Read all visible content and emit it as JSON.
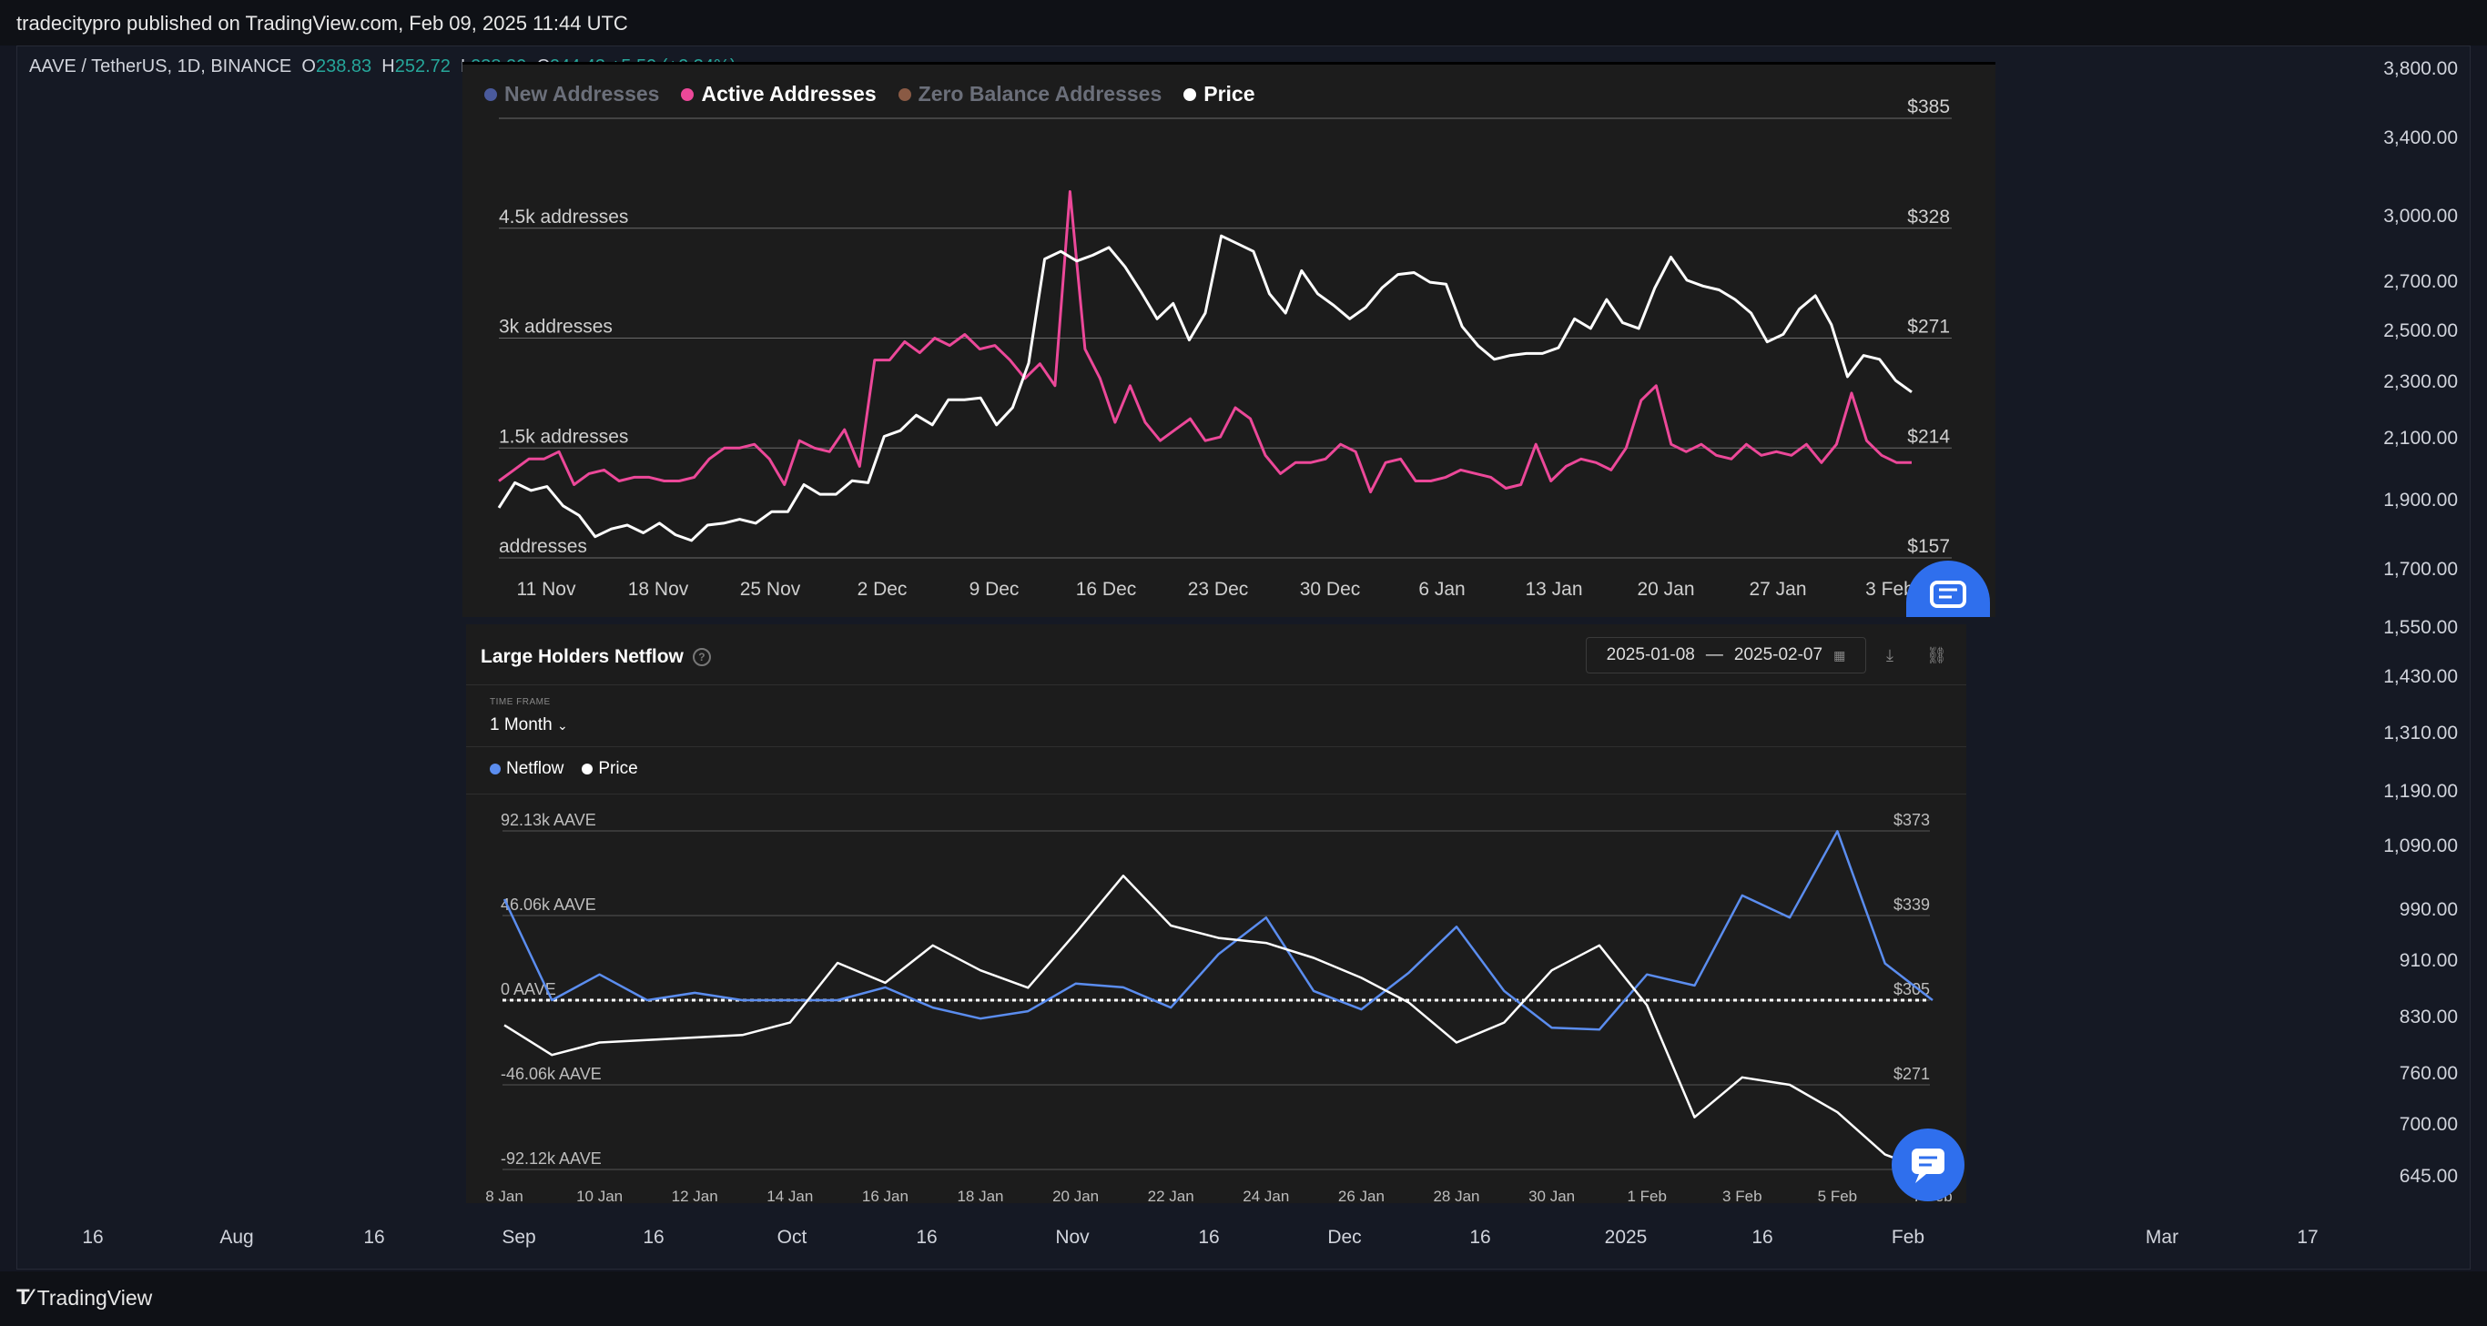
{
  "header": {
    "published": "tradecitypro published on TradingView.com, Feb 09, 2025 11:44 UTC"
  },
  "ohlc": {
    "symbol": "AAVE / TetherUS, 1D, BINANCE",
    "o_label": "O",
    "o": "238.83",
    "h_label": "H",
    "h": "252.72",
    "l_label": "L",
    "l": "238.20",
    "c_label": "C",
    "c": "244.43",
    "change": "+5.59 (+2.34%)"
  },
  "price_axis": [
    "3,800.00",
    "3,400.00",
    "3,000.00",
    "2,700.00",
    "2,500.00",
    "2,300.00",
    "2,100.00",
    "1,900.00",
    "1,700.00",
    "1,550.00",
    "1,430.00",
    "1,310.00",
    "1,190.00",
    "1,090.00",
    "990.00",
    "910.00",
    "830.00",
    "760.00",
    "700.00",
    "645.00"
  ],
  "time_axis": [
    "16",
    "Aug",
    "16",
    "Sep",
    "16",
    "Oct",
    "16",
    "Nov",
    "16",
    "Dec",
    "16",
    "2025",
    "16",
    "Feb",
    "Mar",
    "17"
  ],
  "footer": {
    "brand": "TradingView"
  },
  "colors": {
    "new_addresses": "#4a5a9c",
    "active_addresses": "#ec4899",
    "zero_balance": "#8a5a44",
    "price": "#ffffff",
    "netflow": "#5b8def",
    "panel_bg": "#1c1c1c",
    "chat": "#2f6fed"
  },
  "panel1": {
    "legend": [
      "New Addresses",
      "Active Addresses",
      "Zero Balance Addresses",
      "Price"
    ],
    "chart_data": {
      "type": "line",
      "x_ticks": [
        "11 Nov",
        "18 Nov",
        "25 Nov",
        "2 Dec",
        "9 Dec",
        "16 Dec",
        "23 Dec",
        "30 Dec",
        "6 Jan",
        "13 Jan",
        "20 Jan",
        "27 Jan",
        "3 Feb"
      ],
      "left_axis_labels": [
        "4.5k addresses",
        "3k addresses",
        "1.5k addresses",
        "addresses"
      ],
      "right_axis_labels": [
        "$385",
        "$328",
        "$271",
        "$214",
        "$157"
      ],
      "right_axis_values": [
        385,
        328,
        271,
        214,
        157
      ],
      "series": [
        {
          "name": "Active Addresses",
          "axis": "left",
          "values": [
            1050,
            1200,
            1350,
            1350,
            1450,
            1000,
            1150,
            1200,
            1050,
            1100,
            1100,
            1050,
            1050,
            1100,
            1350,
            1500,
            1500,
            1550,
            1350,
            1000,
            1600,
            1500,
            1450,
            1750,
            1250,
            2700,
            2700,
            2950,
            2800,
            3000,
            2900,
            3050,
            2850,
            2900,
            2700,
            2450,
            2650,
            2350,
            5000,
            2850,
            2450,
            1850,
            2350,
            1850,
            1600,
            1750,
            1900,
            1600,
            1650,
            2050,
            1900,
            1400,
            1150,
            1300,
            1300,
            1350,
            1550,
            1450,
            900,
            1300,
            1350,
            1050,
            1050,
            1100,
            1200,
            1150,
            1100,
            950,
            1000,
            1550,
            1050,
            1250,
            1350,
            1300,
            1200,
            1500,
            2150,
            2350,
            1550,
            1450,
            1550,
            1400,
            1350,
            1550,
            1400,
            1450,
            1400,
            1550,
            1300,
            1550,
            2250,
            1600,
            1400,
            1300,
            1300
          ]
        },
        {
          "name": "Price",
          "axis": "right",
          "values": [
            183,
            196,
            192,
            194,
            184,
            179,
            168,
            172,
            174,
            170,
            175,
            169,
            166,
            174,
            175,
            177,
            175,
            181,
            181,
            195,
            190,
            190,
            197,
            196,
            220,
            223,
            231,
            226,
            239,
            239,
            240,
            226,
            235,
            258,
            312,
            316,
            311,
            314,
            318,
            308,
            295,
            281,
            289,
            270,
            284,
            324,
            320,
            316,
            294,
            284,
            306,
            294,
            288,
            281,
            287,
            297,
            304,
            305,
            300,
            299,
            277,
            267,
            260,
            262,
            263,
            263,
            266,
            281,
            276,
            291,
            279,
            276,
            297,
            313,
            301,
            298,
            296,
            291,
            284,
            269,
            273,
            286,
            293,
            278,
            251,
            262,
            260,
            249,
            243
          ]
        }
      ]
    }
  },
  "panel2": {
    "title": "Large Holders Netflow",
    "date_from": "2025-01-08",
    "date_sep": "—",
    "date_to": "2025-02-07",
    "timeframe_label": "TIME FRAME",
    "timeframe": "1 Month",
    "legend": [
      "Netflow",
      "Price"
    ],
    "chart_data": {
      "type": "line",
      "x": [
        "8 Jan",
        "9 Jan",
        "10 Jan",
        "11 Jan",
        "12 Jan",
        "13 Jan",
        "14 Jan",
        "15 Jan",
        "16 Jan",
        "17 Jan",
        "18 Jan",
        "19 Jan",
        "20 Jan",
        "21 Jan",
        "22 Jan",
        "23 Jan",
        "24 Jan",
        "25 Jan",
        "26 Jan",
        "27 Jan",
        "28 Jan",
        "29 Jan",
        "30 Jan",
        "31 Jan",
        "1 Feb",
        "2 Feb",
        "3 Feb",
        "4 Feb",
        "5 Feb",
        "6 Feb",
        "7 Feb"
      ],
      "x_ticks": [
        "8 Jan",
        "10 Jan",
        "12 Jan",
        "14 Jan",
        "16 Jan",
        "18 Jan",
        "20 Jan",
        "22 Jan",
        "24 Jan",
        "26 Jan",
        "28 Jan",
        "30 Jan",
        "1 Feb",
        "3 Feb",
        "5 Feb",
        "7 Feb"
      ],
      "left_axis_labels": [
        "92.13k AAVE",
        "46.06k AAVE",
        "0 AAVE",
        "-46.06k AAVE",
        "-92.12k AAVE"
      ],
      "left_axis_values": [
        92.13,
        46.06,
        0,
        -46.06,
        -92.12
      ],
      "right_axis_labels": [
        "$373",
        "$339",
        "$305",
        "$271"
      ],
      "right_axis_values": [
        373,
        339,
        305,
        271
      ],
      "series": [
        {
          "name": "Netflow",
          "axis": "left",
          "unit": "k AAVE",
          "values": [
            55,
            0,
            14,
            0,
            4,
            0,
            0,
            0,
            7,
            -4,
            -10,
            -6,
            9,
            7,
            -4,
            25,
            45,
            5,
            -5,
            15,
            40,
            5,
            -15,
            -16,
            14,
            8,
            57,
            45,
            92,
            20,
            0
          ]
        },
        {
          "name": "Price",
          "axis": "right",
          "values": [
            295,
            283,
            288,
            289,
            290,
            291,
            296,
            320,
            312,
            327,
            317,
            310,
            332,
            355,
            335,
            330,
            328,
            322,
            314,
            304,
            288,
            296,
            317,
            327,
            303,
            258,
            274,
            271,
            260,
            243,
            236
          ]
        }
      ]
    }
  }
}
